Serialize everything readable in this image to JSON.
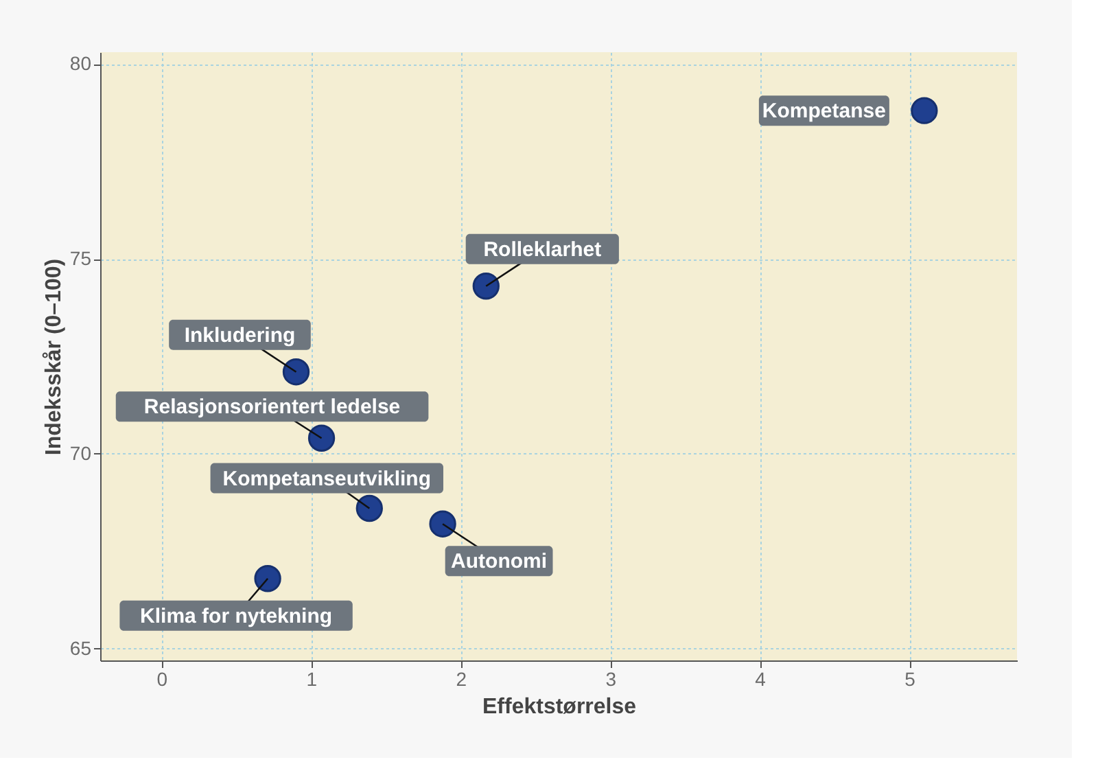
{
  "chart_data": {
    "type": "scatter",
    "xlabel": "Effektstørrelse",
    "ylabel": "Indeksskår (0–100)",
    "x": [
      5.1,
      2.17,
      0.9,
      1.07,
      1.39,
      1.88,
      0.71
    ],
    "series": [
      {
        "color": "#1f3f8f",
        "values": [
          78.8,
          74.3,
          72.1,
          70.4,
          68.6,
          68.2,
          66.8
        ]
      }
    ],
    "annotations": [
      {
        "text": "Kompetanse",
        "x": 5.1,
        "y": 78.8
      },
      {
        "text": "Rolleklarhet",
        "x": 2.17,
        "y": 74.3
      },
      {
        "text": "Inkludering",
        "x": 0.9,
        "y": 72.1
      },
      {
        "text": "Relasjonsorientert ledelse",
        "x": 1.07,
        "y": 70.4
      },
      {
        "text": "Kompetanseutvikling",
        "x": 1.39,
        "y": 68.6
      },
      {
        "text": "Autonomi",
        "x": 1.88,
        "y": 68.2
      },
      {
        "text": "Klima for nytekning",
        "x": 0.71,
        "y": 66.8
      }
    ],
    "xlim": [
      -0.41,
      5.72
    ],
    "ylim": [
      64.7,
      80.3
    ],
    "xticks": [
      0,
      1,
      2,
      3,
      4,
      5
    ],
    "yticks": [
      65,
      70,
      75,
      80
    ],
    "grid": true,
    "marker": "circle"
  }
}
